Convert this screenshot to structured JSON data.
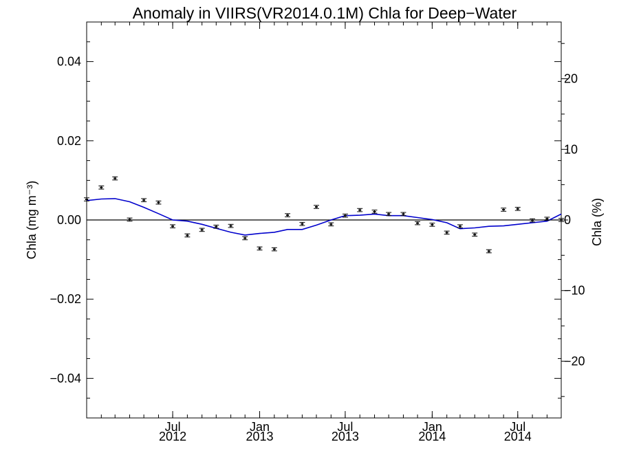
{
  "chart_data": {
    "type": "line",
    "title": "Anomaly in VIIRS(VR2014.0.1M) Chla for Deep−Water",
    "ylabel_left": "Chla (mg m⁻³)",
    "ylabel_right": "Chla (%)",
    "xlim": [
      "2012-01-01",
      "2014-10-01"
    ],
    "ylim_left": [
      -0.05,
      0.05
    ],
    "ylim_right": [
      -28.04,
      28.04
    ],
    "left_ticks": [
      {
        "v": 0.04,
        "label": "0.04"
      },
      {
        "v": 0.02,
        "label": "0.02"
      },
      {
        "v": 0.0,
        "label": "0.00"
      },
      {
        "v": -0.02,
        "label": "−0.02"
      },
      {
        "v": -0.04,
        "label": "−0.04"
      }
    ],
    "right_ticks": [
      {
        "v": 20,
        "label": "20"
      },
      {
        "v": 10,
        "label": "10"
      },
      {
        "v": 0,
        "label": "0"
      },
      {
        "v": -10,
        "label": "−10"
      },
      {
        "v": -20,
        "label": "−20"
      }
    ],
    "x_ticks": [
      {
        "date": "2012-07-01",
        "line1": "Jul",
        "line2": "2012"
      },
      {
        "date": "2013-01-01",
        "line1": "Jan",
        "line2": "2013"
      },
      {
        "date": "2013-07-01",
        "line1": "Jul",
        "line2": "2013"
      },
      {
        "date": "2014-01-01",
        "line1": "Jan",
        "line2": "2014"
      },
      {
        "date": "2014-07-01",
        "line1": "Jul",
        "line2": "2014"
      }
    ],
    "series": [
      {
        "kind": "points_with_errorbars",
        "color": "#000000",
        "x": [
          "2012-01-01",
          "2012-02-01",
          "2012-03-01",
          "2012-04-01",
          "2012-05-01",
          "2012-06-01",
          "2012-07-01",
          "2012-08-01",
          "2012-09-01",
          "2012-10-01",
          "2012-11-01",
          "2012-12-01",
          "2013-01-01",
          "2013-02-01",
          "2013-03-01",
          "2013-04-01",
          "2013-05-01",
          "2013-06-01",
          "2013-07-01",
          "2013-08-01",
          "2013-09-01",
          "2013-10-01",
          "2013-11-01",
          "2013-12-01",
          "2014-01-01",
          "2014-02-01",
          "2014-03-01",
          "2014-04-01",
          "2014-05-01",
          "2014-06-01",
          "2014-07-01",
          "2014-08-01",
          "2014-09-01",
          "2014-10-01"
        ],
        "y": [
          0.0052,
          0.0082,
          0.0105,
          0.0001,
          0.005,
          0.0044,
          -0.0016,
          -0.0039,
          -0.0025,
          -0.0017,
          -0.0015,
          -0.0046,
          -0.0072,
          -0.0074,
          0.0012,
          -0.001,
          0.0033,
          -0.0011,
          0.0011,
          0.0025,
          0.0021,
          0.0015,
          0.0015,
          -0.0008,
          -0.0012,
          -0.0032,
          -0.0016,
          -0.0037,
          -0.0079,
          0.0026,
          0.0028,
          -0.0001,
          0.0003,
          0.0
        ],
        "err": 0.0004
      },
      {
        "kind": "smoothed_line",
        "color": "#0000cc",
        "x": [
          "2012-01-01",
          "2012-02-01",
          "2012-03-01",
          "2012-04-01",
          "2012-05-01",
          "2012-06-01",
          "2012-07-01",
          "2012-08-01",
          "2012-09-01",
          "2012-10-01",
          "2012-11-01",
          "2012-12-01",
          "2013-01-01",
          "2013-02-01",
          "2013-03-01",
          "2013-04-01",
          "2013-05-01",
          "2013-06-01",
          "2013-07-01",
          "2013-08-01",
          "2013-09-01",
          "2013-10-01",
          "2013-11-01",
          "2013-12-01",
          "2014-01-01",
          "2014-02-01",
          "2014-03-01",
          "2014-04-01",
          "2014-05-01",
          "2014-06-01",
          "2014-07-01",
          "2014-08-01",
          "2014-09-01",
          "2014-10-01"
        ],
        "y": [
          0.0049,
          0.0053,
          0.0054,
          0.0046,
          0.0032,
          0.0016,
          0.0,
          -0.0003,
          -0.0011,
          -0.0021,
          -0.0031,
          -0.0038,
          -0.0034,
          -0.0031,
          -0.0024,
          -0.0024,
          -0.0013,
          0.0,
          0.0011,
          0.0012,
          0.0015,
          0.0011,
          0.0011,
          0.0006,
          0.0001,
          -0.0007,
          -0.0022,
          -0.002,
          -0.0016,
          -0.0015,
          -0.0011,
          -0.0007,
          -0.0003,
          0.0015
        ]
      }
    ],
    "zero_line": true,
    "grid": false,
    "legend": "none"
  }
}
